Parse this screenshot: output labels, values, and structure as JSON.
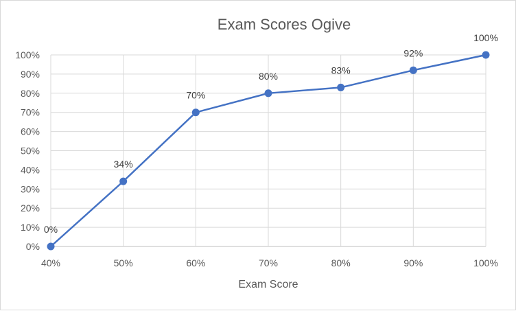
{
  "chart_data": {
    "type": "line",
    "title": "Exam Scores Ogive",
    "xlabel": "Exam Score",
    "ylabel": "",
    "categories": [
      "40%",
      "50%",
      "60%",
      "70%",
      "80%",
      "90%",
      "100%"
    ],
    "x": [
      40,
      50,
      60,
      70,
      80,
      90,
      100
    ],
    "values": [
      0,
      34,
      70,
      80,
      83,
      92,
      100
    ],
    "data_labels": [
      "0%",
      "34%",
      "70%",
      "80%",
      "83%",
      "92%",
      "100%"
    ],
    "y_ticks": [
      "0%",
      "10%",
      "20%",
      "30%",
      "40%",
      "50%",
      "60%",
      "70%",
      "80%",
      "90%",
      "100%"
    ],
    "xlim": [
      40,
      100
    ],
    "ylim": [
      0,
      100
    ],
    "grid": true,
    "markers": true,
    "legend": "none",
    "colors": {
      "series": "#4472c4",
      "grid": "#d9d9d9",
      "text": "#595959"
    }
  }
}
